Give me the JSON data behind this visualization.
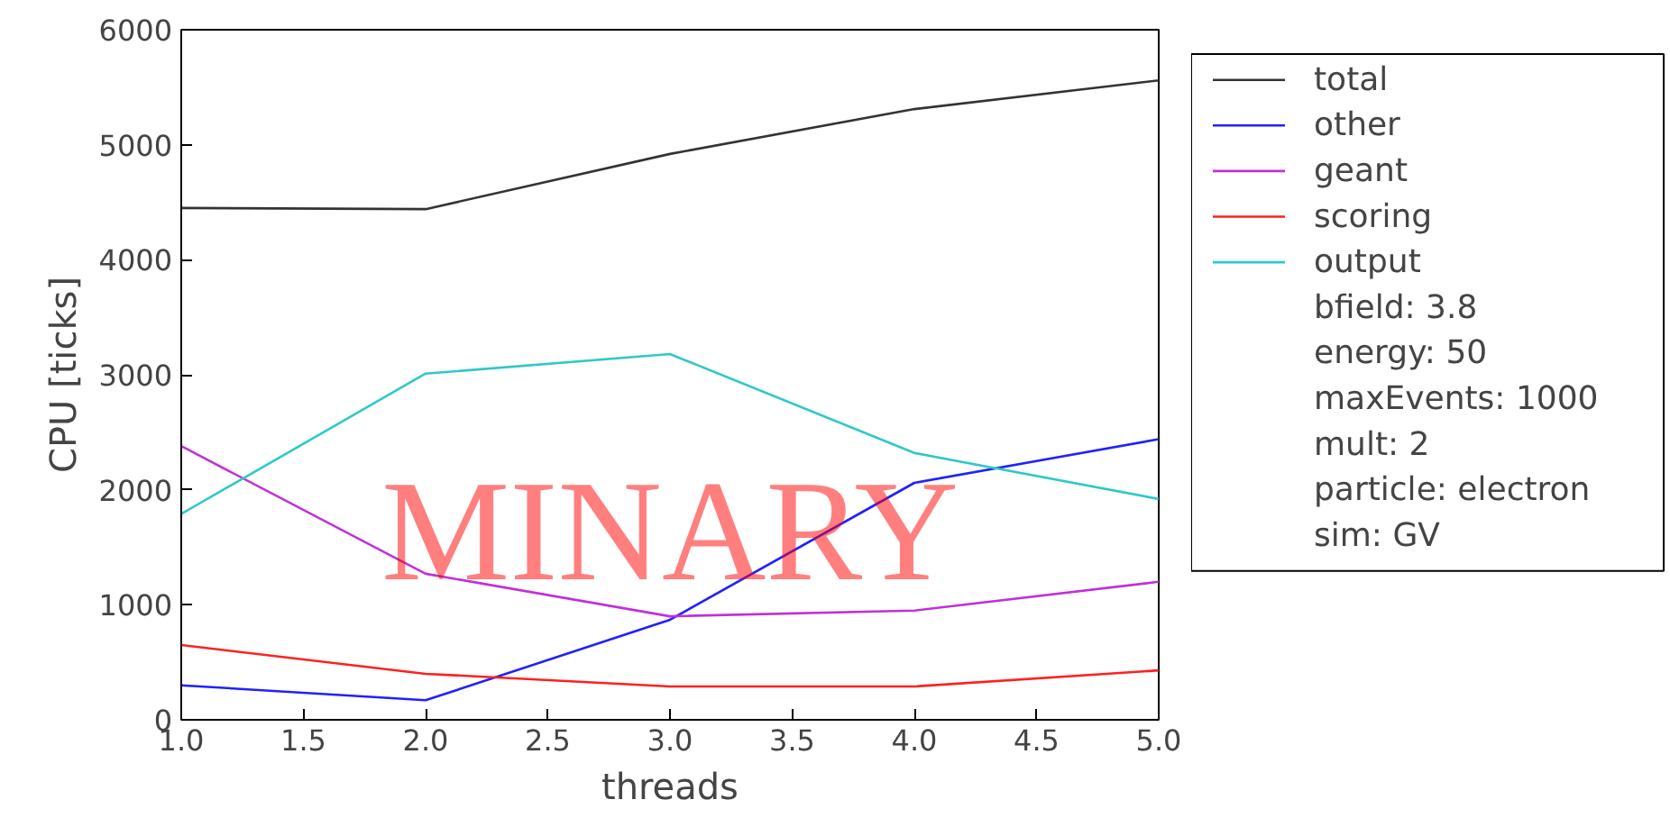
{
  "chart_data": {
    "type": "line",
    "xlabel": "threads",
    "ylabel": "CPU [ticks]",
    "x": [
      1,
      2,
      3,
      4,
      5
    ],
    "series": [
      {
        "name": "total",
        "color": "#333333",
        "values": [
          4450,
          4440,
          4920,
          5310,
          5560
        ]
      },
      {
        "name": "other",
        "color": "#2020ff",
        "values": [
          300,
          170,
          870,
          2060,
          2440
        ]
      },
      {
        "name": "geant",
        "color": "#c030d8",
        "values": [
          2380,
          1270,
          900,
          950,
          1200
        ]
      },
      {
        "name": "scoring",
        "color": "#ff2020",
        "values": [
          650,
          400,
          290,
          290,
          430
        ]
      },
      {
        "name": "output",
        "color": "#30c8c8",
        "values": [
          1790,
          3010,
          3180,
          2320,
          1920
        ]
      }
    ],
    "xlim": [
      1.0,
      5.0
    ],
    "xticks": [
      {
        "value": 1,
        "label": "1.0"
      },
      {
        "value": 1.5,
        "label": "1.5"
      },
      {
        "value": 2,
        "label": "2.0"
      },
      {
        "value": 2.5,
        "label": "2.5"
      },
      {
        "value": 3,
        "label": "3.0"
      },
      {
        "value": 3.5,
        "label": "3.5"
      },
      {
        "value": 4,
        "label": "4.0"
      },
      {
        "value": 4.5,
        "label": "4.5"
      },
      {
        "value": 5,
        "label": "5.0"
      }
    ],
    "ylim": [
      0,
      6000
    ],
    "yticks": [
      0,
      1000,
      2000,
      3000,
      4000,
      5000,
      6000
    ],
    "grid": false,
    "legend": "right",
    "marker": "none",
    "line_style": "solid",
    "annotations": [
      "bfield: 3.8",
      "energy: 50",
      "maxEvents: 1000",
      "mult: 2",
      "particle: electron",
      "sim: GV",
      "MINARY"
    ]
  }
}
